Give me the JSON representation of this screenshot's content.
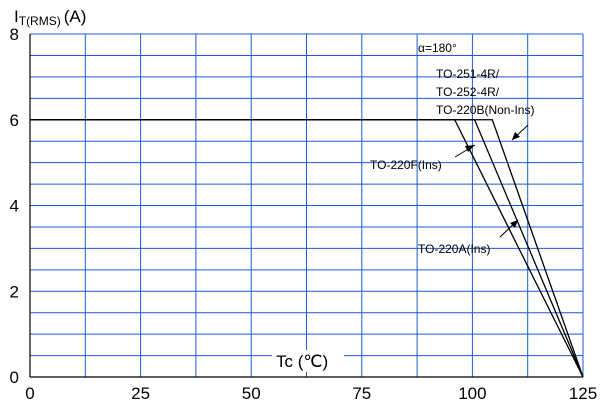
{
  "chart_data": {
    "type": "line",
    "ylabel_main": "I",
    "ylabel_sub": "T(RMS)",
    "ylabel_unit": "(A)",
    "xlabel": "Tc (℃)",
    "xlim": [
      0,
      125
    ],
    "ylim": [
      0,
      8
    ],
    "x_ticks": [
      0,
      25,
      50,
      75,
      100,
      125
    ],
    "y_ticks": [
      0,
      2,
      4,
      6,
      8
    ],
    "x_tick_labels": [
      "0",
      "25",
      "50",
      "75",
      "100",
      "125"
    ],
    "y_tick_labels": [
      "0",
      "2",
      "4",
      "6",
      "8"
    ],
    "grid": true,
    "annotations": {
      "alpha": "α=180°",
      "pkg_line1": "TO-251-4R/",
      "pkg_line2": "TO-252-4R/",
      "pkg_line3": "TO-220B(Non-Ins)",
      "to220f": "TO-220F(Ins)",
      "to220a": "TO-220A(Ins)"
    },
    "series": [
      {
        "x": [
          0,
          96,
          125
        ],
        "y": [
          6,
          6,
          0
        ]
      },
      {
        "x": [
          0,
          100.5,
          125
        ],
        "y": [
          6,
          6,
          0
        ]
      },
      {
        "x": [
          0,
          104.5,
          125
        ],
        "y": [
          6,
          6,
          0
        ]
      }
    ],
    "colors": {
      "grid": "#1a5ad6",
      "axis": "#000000",
      "curve": "#000000"
    }
  }
}
